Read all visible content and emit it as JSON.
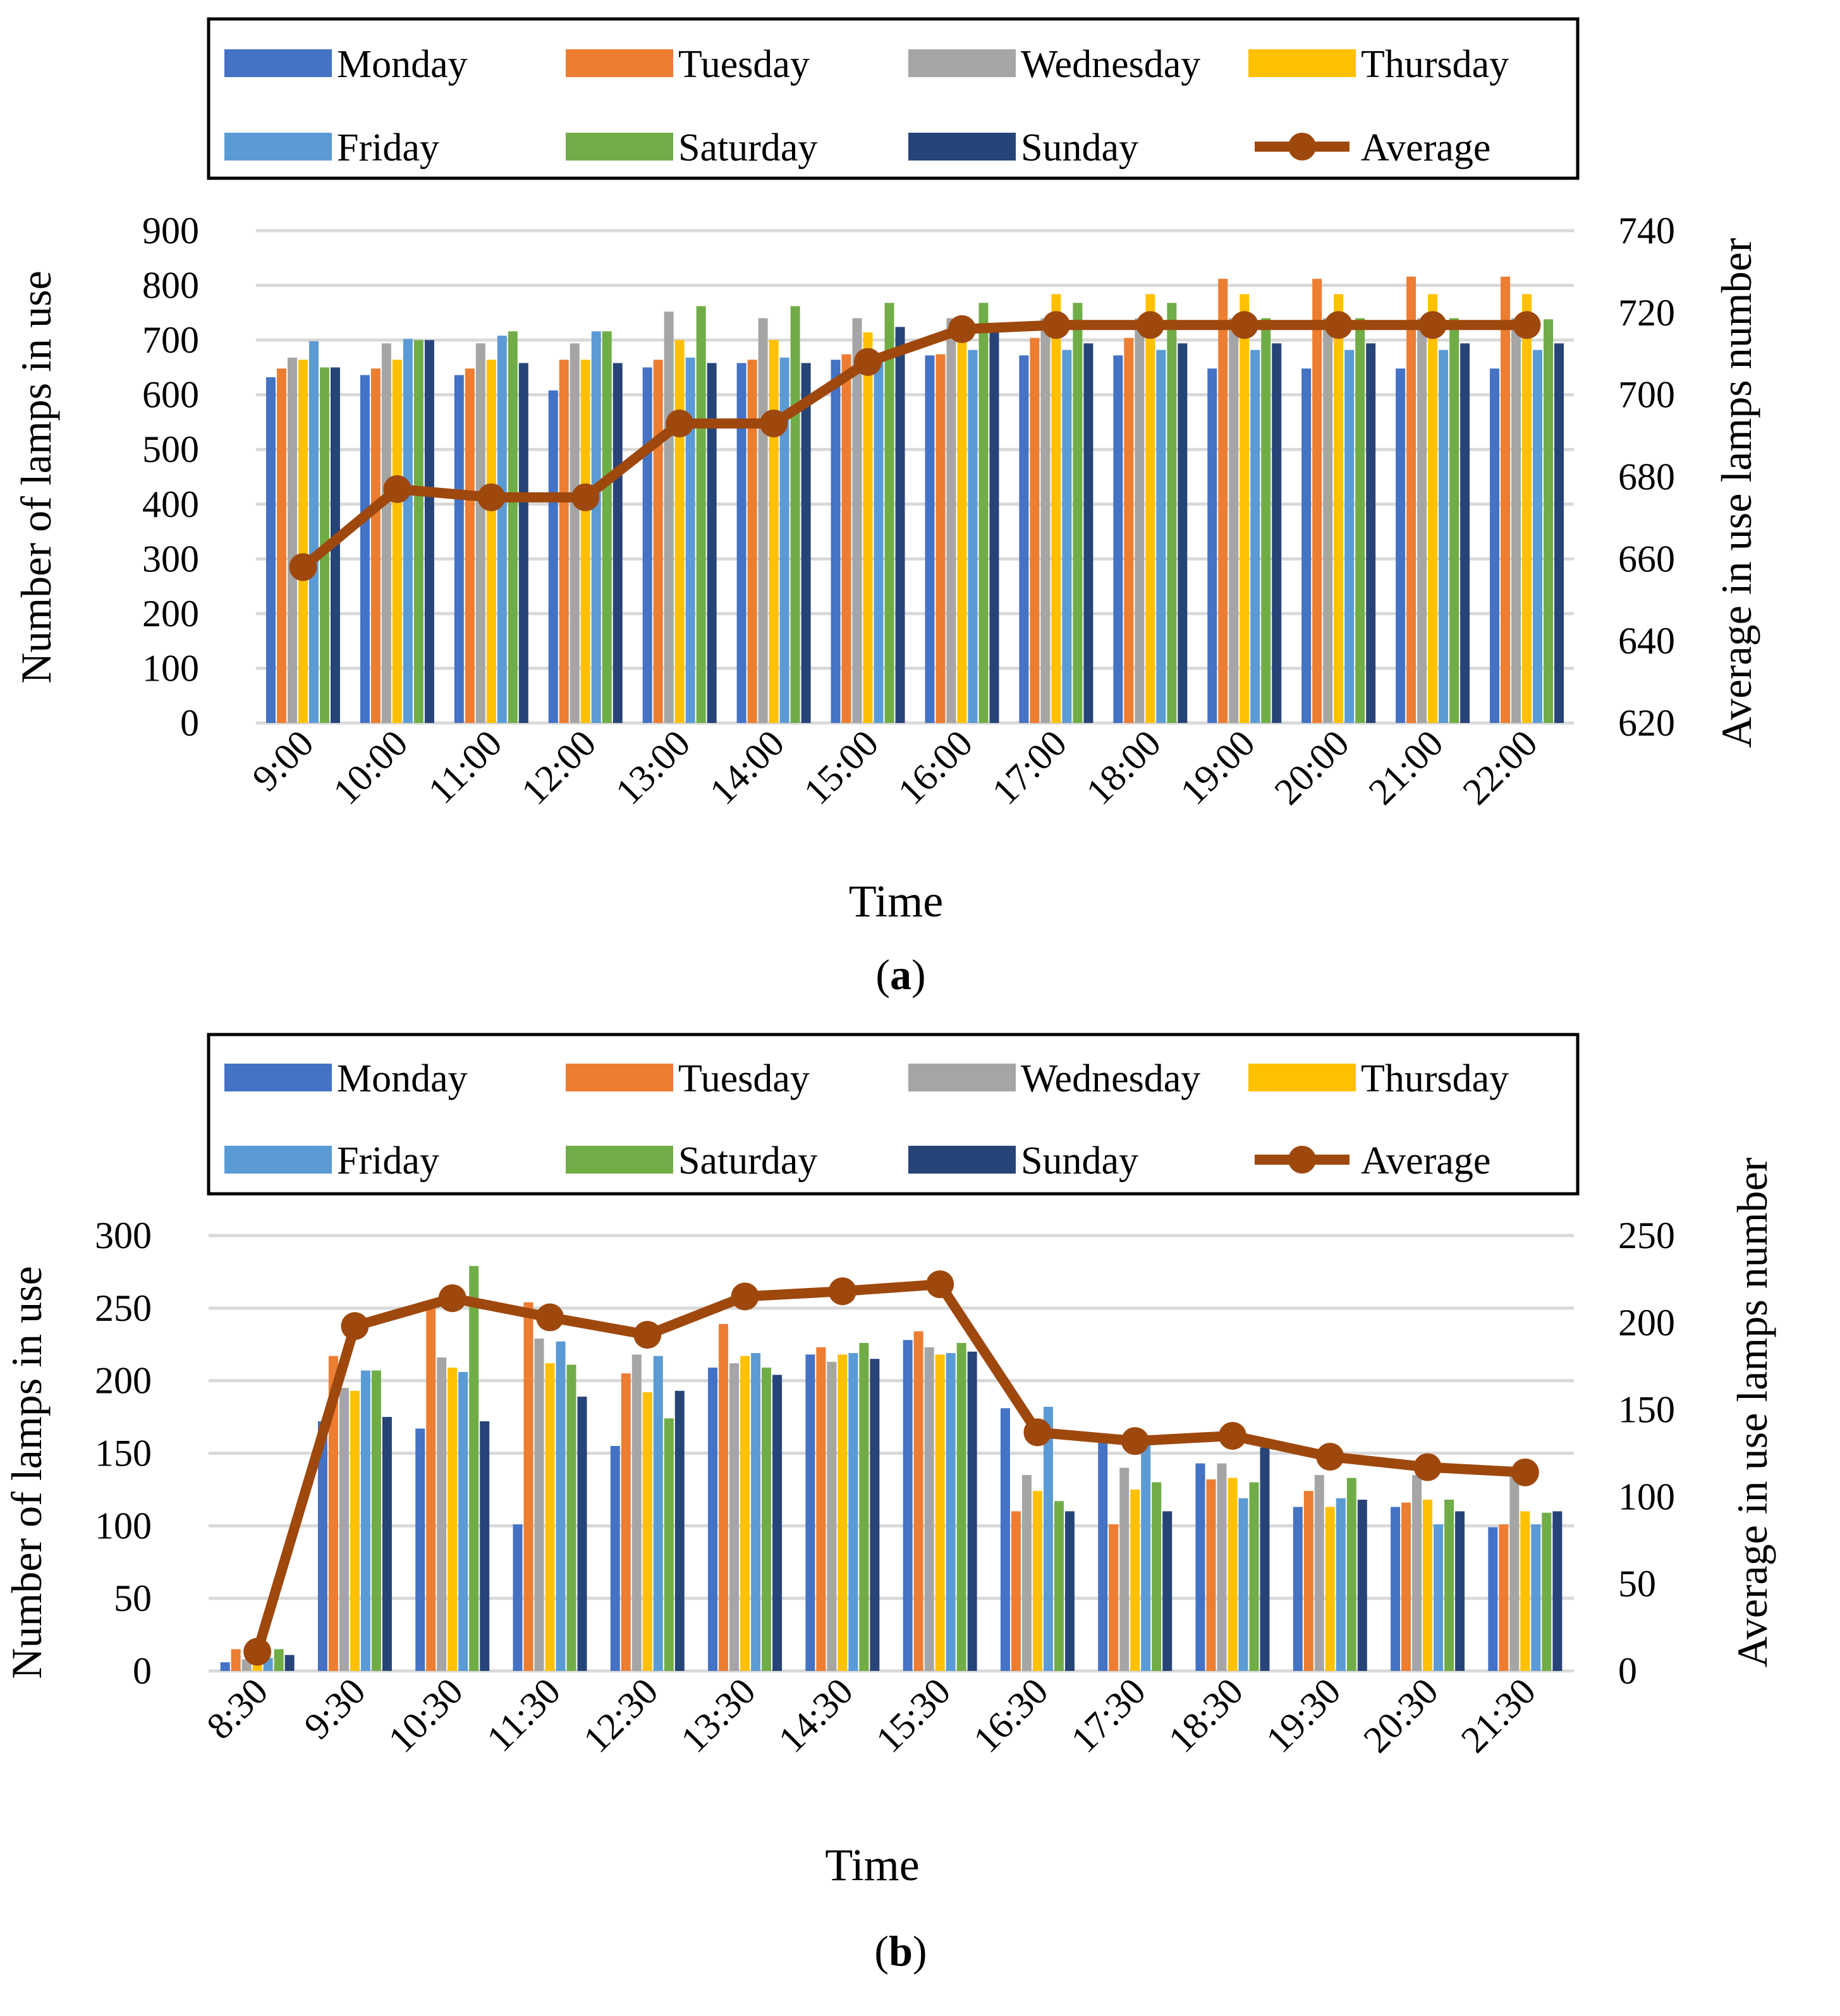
{
  "colors": {
    "Monday": "#4472C4",
    "Tuesday": "#ED7D31",
    "Wednesday": "#A5A5A5",
    "Thursday": "#FFC000",
    "Friday": "#5B9BD5",
    "Saturday": "#70AD47",
    "Sunday": "#264478",
    "Average": "#9E480E",
    "grid": "#D9D9D9"
  },
  "chart_data": [
    {
      "type": "bar",
      "panel_label": "(a)",
      "xlabel": "Time",
      "ylabel": "Number of lamps in use",
      "y2label": "Average in use lamps number",
      "ylim": [
        0,
        900
      ],
      "y_ticks": [
        0,
        100,
        200,
        300,
        400,
        500,
        600,
        700,
        800,
        900
      ],
      "y2lim": [
        620,
        740
      ],
      "y2_ticks": [
        620,
        640,
        660,
        680,
        700,
        720,
        740
      ],
      "grid": true,
      "legend_position": "top",
      "categories": [
        "9:00",
        "10:00",
        "11:00",
        "12:00",
        "13:00",
        "14:00",
        "15:00",
        "16:00",
        "17:00",
        "18:00",
        "19:00",
        "20:00",
        "21:00",
        "22:00"
      ],
      "series": [
        {
          "name": "Monday",
          "values": [
            632,
            636,
            636,
            608,
            650,
            658,
            664,
            672,
            672,
            672,
            648,
            648,
            648,
            648
          ]
        },
        {
          "name": "Tuesday",
          "values": [
            648,
            648,
            648,
            664,
            664,
            664,
            674,
            674,
            704,
            704,
            812,
            812,
            816,
            816
          ]
        },
        {
          "name": "Wednesday",
          "values": [
            668,
            694,
            694,
            694,
            752,
            740,
            740,
            740,
            740,
            740,
            740,
            740,
            740,
            740
          ]
        },
        {
          "name": "Thursday",
          "values": [
            664,
            664,
            664,
            664,
            700,
            700,
            714,
            738,
            784,
            784,
            784,
            784,
            784,
            784
          ]
        },
        {
          "name": "Friday",
          "values": [
            698,
            702,
            708,
            716,
            668,
            668,
            668,
            682,
            682,
            682,
            682,
            682,
            682,
            682
          ]
        },
        {
          "name": "Saturday",
          "values": [
            650,
            700,
            716,
            716,
            762,
            762,
            768,
            768,
            768,
            768,
            740,
            740,
            740,
            738
          ]
        },
        {
          "name": "Sunday",
          "values": [
            650,
            700,
            658,
            658,
            658,
            658,
            724,
            730,
            694,
            694,
            694,
            694,
            694,
            694
          ]
        },
        {
          "name": "Average",
          "type": "line",
          "axis": "right",
          "values": [
            658,
            677,
            675,
            675,
            693,
            693,
            708,
            716,
            717,
            717,
            717,
            717,
            717,
            717
          ]
        }
      ]
    },
    {
      "type": "bar",
      "panel_label": "(b)",
      "xlabel": "Time",
      "ylabel": "Number of lamps in use",
      "y2label": "Average in use lamps number",
      "ylim": [
        0,
        300
      ],
      "y_ticks": [
        0,
        50,
        100,
        150,
        200,
        250,
        300
      ],
      "y2lim": [
        0,
        250
      ],
      "y2_ticks": [
        0,
        50,
        100,
        150,
        200,
        250
      ],
      "grid": true,
      "legend_position": "top",
      "categories": [
        "8:30",
        "9:30",
        "10:30",
        "11:30",
        "12:30",
        "13:30",
        "14:30",
        "15:30",
        "16:30",
        "17:30",
        "18:30",
        "19:30",
        "20:30",
        "21:30"
      ],
      "series": [
        {
          "name": "Monday",
          "values": [
            6,
            172,
            167,
            101,
            155,
            209,
            218,
            228,
            181,
            159,
            143,
            113,
            113,
            99
          ]
        },
        {
          "name": "Tuesday",
          "values": [
            15,
            217,
            250,
            254,
            205,
            239,
            223,
            234,
            110,
            101,
            132,
            124,
            116,
            101
          ]
        },
        {
          "name": "Wednesday",
          "values": [
            8,
            195,
            216,
            229,
            218,
            212,
            213,
            223,
            135,
            140,
            143,
            135,
            135,
            135
          ]
        },
        {
          "name": "Thursday",
          "values": [
            7,
            193,
            209,
            212,
            192,
            217,
            218,
            218,
            124,
            125,
            133,
            113,
            118,
            110
          ]
        },
        {
          "name": "Friday",
          "values": [
            9,
            207,
            206,
            227,
            217,
            219,
            219,
            219,
            182,
            160,
            119,
            119,
            101,
            101
          ]
        },
        {
          "name": "Saturday",
          "values": [
            15,
            207,
            279,
            211,
            174,
            209,
            226,
            226,
            117,
            130,
            130,
            133,
            118,
            109
          ]
        },
        {
          "name": "Sunday",
          "values": [
            11,
            175,
            172,
            189,
            193,
            204,
            215,
            220,
            110,
            110,
            154,
            118,
            110,
            110
          ]
        },
        {
          "name": "Average",
          "type": "line",
          "axis": "right",
          "values": [
            11,
            198,
            214,
            203,
            193,
            215,
            218,
            222,
            137,
            132,
            135,
            123,
            117,
            114
          ]
        }
      ]
    }
  ]
}
